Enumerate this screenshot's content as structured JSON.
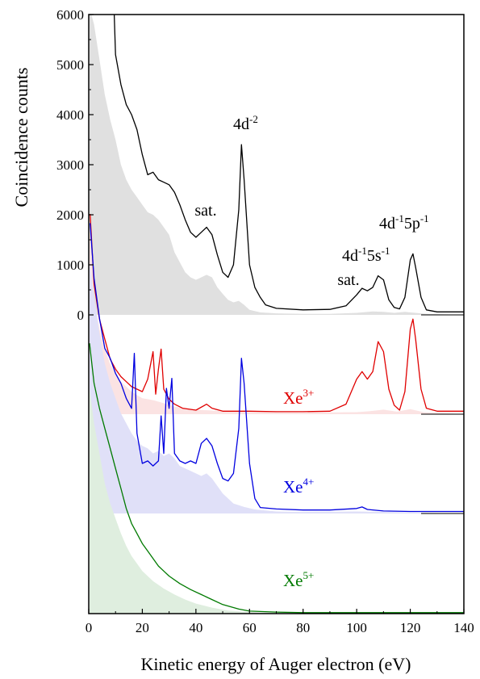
{
  "chart_data": {
    "type": "line",
    "xlabel": "Kinetic energy of Auger electron (eV)",
    "ylabel": "Coincidence counts",
    "xlim": [
      0,
      140
    ],
    "ylim": [
      0,
      6000
    ],
    "x_ticks": [
      "0",
      "20",
      "40",
      "60",
      "80",
      "100",
      "120",
      "140"
    ],
    "y_ticks": [
      "0",
      "1000",
      "2000",
      "3000",
      "4000",
      "5000",
      "6000"
    ],
    "annotations": [
      {
        "text": "sat.",
        "near_x": 44
      },
      {
        "text": "4d",
        "sup": "-2",
        "near_x": 57
      },
      {
        "text": "sat.",
        "near_x": 103
      },
      {
        "text": "4d",
        "sup": "-1",
        "text2": "5s",
        "sup2": "-1",
        "near_x": 108
      },
      {
        "text": "4d",
        "sup": "-1",
        "text2": "5p",
        "sup2": "-1",
        "near_x": 121
      }
    ],
    "series": [
      {
        "name": "",
        "color": "#000000",
        "fill_color": "#e0e0e0",
        "x": [
          9.5,
          10,
          12,
          14,
          16,
          18,
          20,
          22,
          24,
          26,
          28,
          30,
          32,
          34,
          36,
          38,
          40,
          42,
          44,
          46,
          48,
          50,
          52,
          54,
          56,
          57,
          58,
          60,
          62,
          64,
          66,
          70,
          80,
          90,
          96,
          100,
          102,
          104,
          106,
          108,
          110,
          112,
          114,
          116,
          118,
          120,
          121,
          122,
          124,
          126,
          130,
          140
        ],
        "y": [
          6000,
          5200,
          4600,
          4200,
          4000,
          3700,
          3200,
          2800,
          2850,
          2700,
          2650,
          2600,
          2450,
          2200,
          1900,
          1650,
          1550,
          1650,
          1750,
          1600,
          1200,
          850,
          750,
          1000,
          2100,
          3400,
          2700,
          1000,
          550,
          350,
          200,
          130,
          100,
          110,
          180,
          400,
          530,
          480,
          550,
          780,
          700,
          300,
          150,
          120,
          350,
          1100,
          1220,
          950,
          350,
          100,
          60,
          60
        ]
      },
      {
        "name": "Xe3+",
        "label": "Xe",
        "label_sup": "3+",
        "color": "#e00000",
        "fill_color": "#fbe3e3",
        "x": [
          0.5,
          2,
          4,
          6,
          8,
          10,
          12,
          14,
          16,
          18,
          20,
          22,
          24,
          25,
          26,
          27,
          28,
          30,
          32,
          35,
          40,
          44,
          46,
          50,
          60,
          70,
          80,
          90,
          96,
          100,
          102,
          104,
          106,
          108,
          110,
          112,
          114,
          116,
          118,
          120,
          121,
          122,
          124,
          126,
          130,
          140
        ],
        "y": [
          4000,
          2600,
          1900,
          1500,
          1100,
          900,
          750,
          650,
          550,
          500,
          450,
          700,
          1250,
          400,
          900,
          1300,
          500,
          300,
          200,
          120,
          80,
          200,
          120,
          60,
          60,
          50,
          50,
          60,
          200,
          700,
          850,
          700,
          850,
          1450,
          1250,
          500,
          180,
          80,
          450,
          1700,
          1900,
          1500,
          500,
          120,
          60,
          60
        ]
      },
      {
        "name": "Xe4+",
        "label": "Xe",
        "label_sup": "4+",
        "color": "#0000e0",
        "fill_color": "#e0e0f8",
        "x": [
          0.5,
          2,
          4,
          6,
          8,
          10,
          12,
          14,
          16,
          17,
          18,
          20,
          22,
          24,
          26,
          27,
          28,
          29,
          30,
          31,
          32,
          34,
          36,
          38,
          40,
          42,
          44,
          46,
          48,
          50,
          52,
          54,
          56,
          57,
          58,
          60,
          62,
          64,
          70,
          80,
          90,
          100,
          102,
          104,
          110,
          120,
          140
        ],
        "y": [
          5800,
          4700,
          3900,
          3300,
          3100,
          2800,
          2600,
          2300,
          2100,
          3200,
          1600,
          1000,
          1050,
          950,
          1050,
          1950,
          1200,
          2500,
          2100,
          2700,
          1200,
          1050,
          1000,
          1050,
          1000,
          1400,
          1500,
          1350,
          1000,
          700,
          650,
          800,
          1700,
          3100,
          2600,
          1000,
          300,
          120,
          90,
          70,
          70,
          100,
          130,
          80,
          50,
          40,
          40
        ]
      },
      {
        "name": "Xe5+",
        "label": "Xe",
        "label_sup": "5+",
        "color": "#007a00",
        "fill_color": "#dfeedf",
        "x": [
          0.3,
          2,
          4,
          6,
          8,
          10,
          12,
          14,
          16,
          18,
          20,
          22,
          24,
          26,
          28,
          30,
          34,
          38,
          42,
          46,
          50,
          56,
          60,
          70,
          80,
          100,
          140
        ],
        "y": [
          5400,
          4600,
          4100,
          3700,
          3300,
          2900,
          2500,
          2100,
          1800,
          1600,
          1400,
          1250,
          1100,
          950,
          850,
          750,
          600,
          480,
          380,
          280,
          180,
          90,
          50,
          30,
          20,
          20,
          20
        ]
      }
    ],
    "fills": [
      {
        "for": "black",
        "x": [
          0.3,
          1,
          2,
          4,
          6,
          8,
          10,
          12,
          14,
          16,
          18,
          20,
          22,
          24,
          26,
          28,
          30,
          32,
          34,
          36,
          38,
          40,
          42,
          44,
          46,
          48,
          50,
          52,
          54,
          56,
          58,
          60,
          64,
          70,
          80,
          90,
          100,
          106,
          110,
          114,
          118,
          122,
          126,
          140
        ],
        "y": [
          6000,
          6000,
          5800,
          5100,
          4400,
          3900,
          3500,
          3000,
          2700,
          2500,
          2350,
          2200,
          2050,
          2000,
          1900,
          1750,
          1600,
          1250,
          1050,
          850,
          750,
          700,
          750,
          800,
          750,
          550,
          420,
          300,
          250,
          280,
          200,
          100,
          50,
          30,
          20,
          20,
          40,
          70,
          60,
          40,
          60,
          40,
          20,
          0
        ]
      },
      {
        "for": "Xe3+",
        "x": [
          0.3,
          2,
          4,
          6,
          8,
          10,
          12,
          14,
          16,
          18,
          20,
          22,
          24,
          26,
          28,
          30,
          35,
          40,
          50,
          60,
          80,
          100,
          105,
          110,
          115,
          120,
          125,
          140
        ],
        "y": [
          3800,
          2300,
          1700,
          1300,
          1000,
          800,
          650,
          550,
          450,
          380,
          320,
          300,
          280,
          250,
          220,
          180,
          120,
          90,
          60,
          40,
          30,
          40,
          60,
          90,
          50,
          100,
          40,
          0
        ]
      },
      {
        "for": "Xe4+",
        "x": [
          0.3,
          2,
          4,
          6,
          8,
          10,
          12,
          14,
          16,
          18,
          20,
          22,
          24,
          26,
          28,
          30,
          32,
          34,
          36,
          38,
          40,
          42,
          44,
          46,
          48,
          50,
          54,
          58,
          62,
          70,
          80,
          100,
          140
        ],
        "y": [
          5000,
          4300,
          3600,
          3000,
          2600,
          2300,
          2000,
          1800,
          1600,
          1450,
          1350,
          1300,
          1200,
          1250,
          1150,
          1200,
          1100,
          950,
          900,
          850,
          800,
          750,
          800,
          700,
          550,
          400,
          200,
          130,
          80,
          40,
          30,
          40,
          0
        ]
      },
      {
        "for": "Xe5+",
        "x": [
          0.3,
          2,
          4,
          6,
          8,
          10,
          12,
          14,
          16,
          18,
          20,
          24,
          28,
          32,
          36,
          40,
          46,
          52,
          60,
          70,
          140
        ],
        "y": [
          4500,
          3800,
          3200,
          2600,
          2200,
          1900,
          1600,
          1350,
          1150,
          1000,
          850,
          650,
          500,
          380,
          280,
          200,
          120,
          60,
          30,
          10,
          0
        ]
      }
    ]
  }
}
